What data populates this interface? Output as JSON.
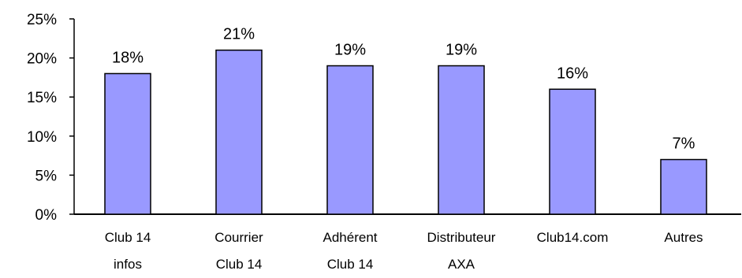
{
  "chart_data": {
    "type": "bar",
    "categories": [
      [
        "Club 14",
        "infos"
      ],
      [
        "Courrier",
        "Club 14"
      ],
      [
        "Adhérent",
        "Club 14"
      ],
      [
        "Distributeur",
        "AXA"
      ],
      [
        "Club14.com"
      ],
      [
        "Autres"
      ]
    ],
    "values": [
      18,
      21,
      19,
      19,
      16,
      7
    ],
    "data_labels": [
      "18%",
      "21%",
      "19%",
      "19%",
      "16%",
      "7%"
    ],
    "ylim": [
      0,
      25
    ],
    "y_ticks": [
      0,
      5,
      10,
      15,
      20,
      25
    ],
    "y_tick_labels": [
      "0%",
      "5%",
      "10%",
      "15%",
      "20%",
      "25%"
    ],
    "title": "",
    "xlabel": "",
    "ylabel": "",
    "grid": false,
    "colors": {
      "bar_fill": "#9999ff",
      "bar_stroke": "#000000",
      "axis": "#000000"
    }
  }
}
